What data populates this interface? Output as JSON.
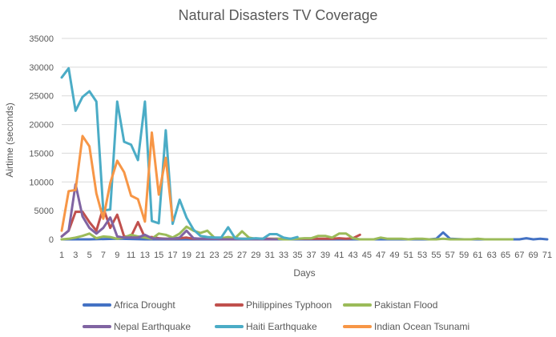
{
  "chart_data": {
    "type": "line",
    "title": "Natural Disasters TV Coverage",
    "xlabel": "Days",
    "ylabel": "Airtime  (seconds)",
    "ylim": [
      0,
      35000
    ],
    "yticks": [
      0,
      5000,
      10000,
      15000,
      20000,
      25000,
      30000,
      35000
    ],
    "xlim": [
      1,
      71
    ],
    "xticks": [
      1,
      3,
      5,
      7,
      9,
      11,
      13,
      15,
      17,
      19,
      21,
      23,
      25,
      27,
      29,
      31,
      33,
      35,
      37,
      39,
      41,
      43,
      45,
      47,
      49,
      51,
      53,
      55,
      57,
      59,
      61,
      63,
      65,
      67,
      69,
      71
    ],
    "grid": "horizontal",
    "legend_position": "bottom",
    "series": [
      {
        "name": "Africa Drought",
        "color": "#4472C4",
        "x": [
          1,
          5,
          9,
          13,
          17,
          21,
          25,
          29,
          33,
          37,
          41,
          45,
          49,
          53,
          54,
          55,
          56,
          57,
          59,
          61,
          63,
          65,
          66,
          67,
          68,
          69,
          70,
          71
        ],
        "y": [
          0,
          0,
          100,
          0,
          0,
          0,
          0,
          0,
          0,
          0,
          0,
          0,
          0,
          0,
          0,
          100,
          1200,
          100,
          0,
          0,
          0,
          0,
          0,
          0,
          200,
          0,
          100,
          0
        ]
      },
      {
        "name": "Philippines Typhoon",
        "color": "#C0504D",
        "x": [
          1,
          2,
          3,
          4,
          5,
          6,
          7,
          8,
          9,
          10,
          11,
          12,
          13,
          14,
          15,
          16,
          17,
          18,
          19,
          20,
          21,
          22,
          23,
          24,
          25,
          26,
          27,
          28,
          29,
          30,
          31,
          32,
          33,
          34,
          35,
          36,
          37,
          38,
          39,
          40,
          41,
          42,
          43,
          44
        ],
        "y": [
          500,
          1500,
          4800,
          4800,
          3000,
          1500,
          5500,
          2000,
          4300,
          500,
          500,
          3000,
          300,
          400,
          200,
          100,
          100,
          200,
          300,
          100,
          100,
          100,
          100,
          100,
          200,
          100,
          100,
          100,
          100,
          100,
          100,
          100,
          100,
          100,
          100,
          100,
          100,
          100,
          100,
          100,
          200,
          100,
          200,
          800
        ]
      },
      {
        "name": "Pakistan Flood",
        "color": "#9BBB59",
        "x": [
          1,
          2,
          3,
          4,
          5,
          6,
          7,
          8,
          9,
          10,
          11,
          12,
          13,
          14,
          15,
          16,
          17,
          18,
          19,
          20,
          21,
          22,
          23,
          24,
          25,
          26,
          27,
          28,
          29,
          30,
          31,
          32,
          33,
          34,
          35,
          36,
          37,
          38,
          39,
          40,
          41,
          42,
          43,
          44,
          45,
          46,
          47,
          48,
          49,
          50,
          51,
          52,
          53,
          54,
          55,
          56,
          57,
          58,
          59,
          60,
          61,
          62,
          63,
          64,
          65,
          66
        ],
        "y": [
          0,
          100,
          300,
          600,
          1000,
          200,
          500,
          400,
          100,
          300,
          800,
          500,
          300,
          100,
          1000,
          800,
          300,
          1000,
          2200,
          1500,
          1100,
          1500,
          300,
          200,
          400,
          200,
          1400,
          300,
          100,
          0,
          0,
          100,
          0,
          0,
          100,
          200,
          200,
          600,
          600,
          300,
          1000,
          1000,
          200,
          0,
          0,
          0,
          300,
          100,
          100,
          100,
          0,
          100,
          100,
          0,
          0,
          100,
          0,
          0,
          0,
          0,
          100,
          0,
          0,
          0,
          0,
          0
        ]
      },
      {
        "name": "Nepal Earthquake",
        "color": "#8064A2",
        "x": [
          1,
          2,
          3,
          4,
          5,
          6,
          7,
          8,
          9,
          10,
          11,
          12,
          13,
          14,
          15,
          16,
          17,
          18,
          19,
          20,
          21,
          22,
          23,
          24,
          25,
          26,
          27,
          28,
          29,
          30,
          31,
          32
        ],
        "y": [
          500,
          1500,
          9600,
          4000,
          2000,
          1000,
          2000,
          3800,
          500,
          300,
          300,
          300,
          800,
          200,
          100,
          100,
          100,
          300,
          1500,
          200,
          100,
          100,
          100,
          0,
          0,
          0,
          0,
          0,
          0,
          0,
          0,
          0
        ]
      },
      {
        "name": "Haiti Earthquake",
        "color": "#4BACC6",
        "x": [
          1,
          2,
          3,
          4,
          5,
          6,
          7,
          8,
          9,
          10,
          11,
          12,
          13,
          14,
          15,
          16,
          17,
          18,
          19,
          20,
          21,
          22,
          23,
          24,
          25,
          26,
          27,
          28,
          29,
          30,
          31,
          32,
          33,
          34,
          35
        ],
        "y": [
          28200,
          29800,
          22400,
          24800,
          25800,
          24000,
          5000,
          5200,
          24000,
          17000,
          16500,
          13800,
          24000,
          3200,
          2800,
          19000,
          2700,
          6900,
          3800,
          1700,
          600,
          400,
          300,
          300,
          2100,
          200,
          100,
          100,
          200,
          100,
          900,
          900,
          300,
          100,
          400
        ]
      },
      {
        "name": "Indian Ocean Tsunami",
        "color": "#F79646",
        "x": [
          1,
          2,
          3,
          4,
          5,
          6,
          7,
          8,
          9,
          10,
          11,
          12,
          13,
          14,
          15,
          16,
          17
        ],
        "y": [
          1500,
          8400,
          8600,
          18000,
          16200,
          8000,
          3600,
          9800,
          13700,
          11700,
          7600,
          7000,
          3100,
          18600,
          7800,
          14200,
          3300
        ]
      }
    ]
  }
}
